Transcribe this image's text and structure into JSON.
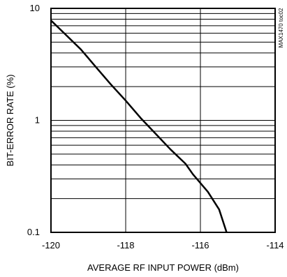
{
  "chart_data": {
    "type": "line",
    "title": "",
    "xlabel": "AVERAGE RF INPUT POWER (dBm)",
    "ylabel": "BIT-ERROR RATE (%)",
    "xlim": [
      -120,
      -114
    ],
    "ylim": [
      0.1,
      10
    ],
    "yscale": "log",
    "grid": true,
    "x_ticks": [
      -120,
      -118,
      -116,
      -114
    ],
    "x_tick_labels": [
      "-120",
      "-118",
      "-116",
      "-114"
    ],
    "y_ticks": [
      0.1,
      1,
      10
    ],
    "y_tick_labels": [
      "0.1",
      "1",
      "10"
    ],
    "series": [
      {
        "x": [
          -120.0,
          -119.6,
          -119.2,
          -118.8,
          -118.4,
          -118.0,
          -117.6,
          -117.2,
          -116.8,
          -116.4,
          -116.2,
          -115.8,
          -115.5,
          -115.3
        ],
        "y": [
          7.8,
          5.8,
          4.3,
          3.0,
          2.1,
          1.5,
          1.05,
          0.76,
          0.55,
          0.41,
          0.33,
          0.23,
          0.16,
          0.1
        ]
      }
    ],
    "annotations": [
      "MAX1470 toc02"
    ]
  }
}
